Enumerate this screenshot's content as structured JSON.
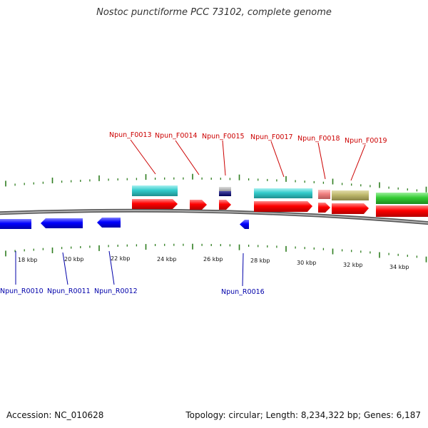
{
  "title": "Nostoc punctiforme PCC 73102, complete genome",
  "footer": {
    "accession": "Accession: NC_010628",
    "summary": "Topology: circular; Length: 8,234,322 bp; Genes: 6,187"
  },
  "colors": {
    "forward_label": "#cc0000",
    "reverse_label": "#0000aa",
    "forward_gene": "#ff0000",
    "reverse_gene": "#0000ff",
    "cyan": "#33cccc",
    "green": "#33cc33",
    "khaki": "#bdb76b",
    "pink": "#f08080",
    "tick": "#2e7d1f",
    "backbone": "#777777"
  },
  "scale_labels": [
    "18 kbp",
    "20 kbp",
    "22 kbp",
    "24 kbp",
    "26 kbp",
    "28 kbp",
    "30 kbp",
    "32 kbp",
    "34 kbp"
  ],
  "forward_labels": [
    "Npun_F0013",
    "Npun_F0014",
    "Npun_F0015",
    "Npun_F0017",
    "Npun_F0018",
    "Npun_F0019"
  ],
  "reverse_labels": [
    "Npun_R0010",
    "Npun_R0011",
    "Npun_R0012",
    "Npun_R0016"
  ]
}
